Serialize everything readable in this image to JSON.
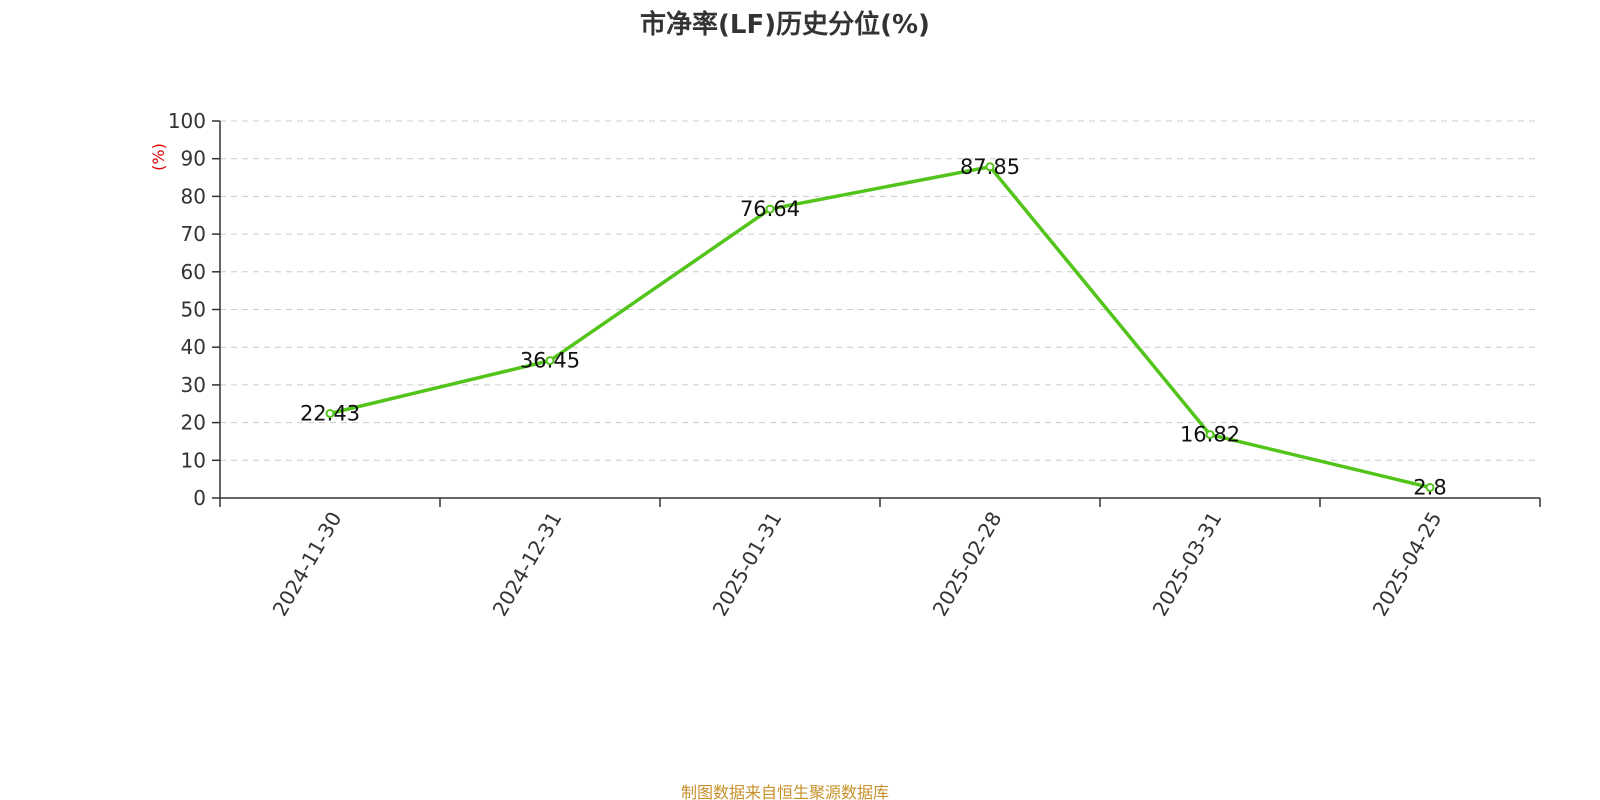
{
  "chart_data": {
    "type": "line",
    "title": "市净率(LF)历史分位(%)",
    "ylabel": "(%)",
    "xlabel": "",
    "categories": [
      "2024-11-30",
      "2024-12-31",
      "2025-01-31",
      "2025-02-28",
      "2025-03-31",
      "2025-04-25"
    ],
    "series": [
      {
        "values": [
          22.43,
          36.45,
          76.64,
          87.85,
          16.82,
          2.8
        ],
        "labels": [
          "22.43",
          "36.45",
          "76.64",
          "87.85",
          "16.82",
          "2.8"
        ]
      }
    ],
    "ylim": [
      0,
      100
    ],
    "yticks": [
      "0",
      "10",
      "20",
      "30",
      "40",
      "50",
      "60",
      "70",
      "80",
      "90",
      "100"
    ],
    "grid": true,
    "legend": "none",
    "line_color": "#52c41a"
  },
  "source_note": "制图数据来自恒生聚源数据库"
}
